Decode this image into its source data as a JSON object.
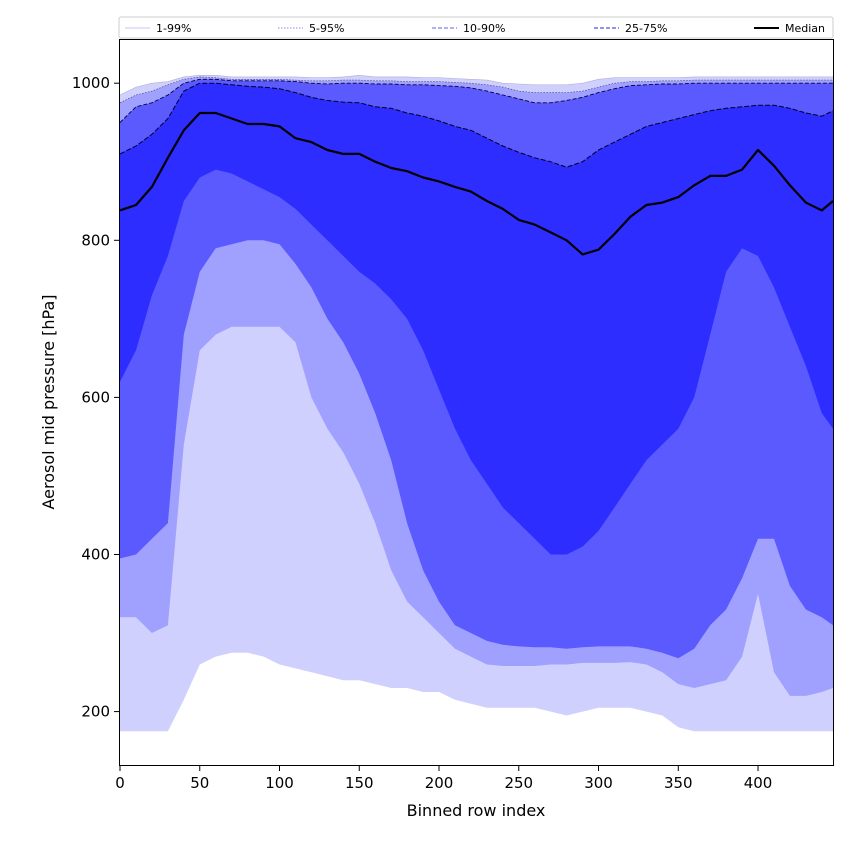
{
  "chart_data": {
    "type": "area",
    "xlabel": "Binned row index",
    "ylabel": "Aerosol mid pressure [hPa]",
    "xlim": [
      0,
      447
    ],
    "ylim": [
      132,
      1055
    ],
    "xticks": [
      0,
      50,
      100,
      150,
      200,
      250,
      300,
      350,
      400
    ],
    "yticks": [
      200,
      400,
      600,
      800,
      1000
    ],
    "grid": false,
    "legend_position": "top",
    "legend": [
      {
        "label": "1-99%",
        "color": "#d0d0ff",
        "style": "solid"
      },
      {
        "label": "5-95%",
        "color": "#a0a0ff",
        "style": "dotted"
      },
      {
        "label": "10-90%",
        "color": "#8080f0",
        "style": "dashed"
      },
      {
        "label": "25-75%",
        "color": "#5050e8",
        "style": "dashed"
      },
      {
        "label": "Median",
        "color": "#000000",
        "style": "solid"
      }
    ],
    "band_colors": {
      "p01_p99": "#d0d0ff",
      "p05_p95": "#a0a0ff",
      "p10_p90": "#5a5aff",
      "p25_p75": "#2d2dff"
    },
    "x": [
      0,
      10,
      20,
      30,
      40,
      50,
      60,
      70,
      80,
      90,
      100,
      110,
      120,
      130,
      140,
      150,
      160,
      170,
      180,
      190,
      200,
      210,
      220,
      230,
      240,
      250,
      260,
      270,
      280,
      290,
      300,
      310,
      320,
      330,
      340,
      350,
      360,
      370,
      380,
      390,
      400,
      410,
      420,
      430,
      440,
      447
    ],
    "series": [
      {
        "name": "1-99%",
        "lower": [
          175,
          175,
          175,
          175,
          215,
          260,
          270,
          275,
          275,
          270,
          260,
          255,
          250,
          245,
          240,
          240,
          235,
          230,
          230,
          225,
          225,
          215,
          210,
          205,
          205,
          205,
          205,
          200,
          195,
          200,
          205,
          205,
          205,
          200,
          195,
          180,
          175,
          175,
          175,
          175,
          175,
          175,
          175,
          175,
          175,
          175
        ],
        "upper": [
          985,
          995,
          1000,
          1002,
          1008,
          1010,
          1010,
          1008,
          1008,
          1008,
          1008,
          1008,
          1007,
          1007,
          1008,
          1010,
          1008,
          1008,
          1008,
          1007,
          1007,
          1006,
          1005,
          1004,
          1000,
          999,
          998,
          998,
          998,
          1000,
          1005,
          1007,
          1007,
          1007,
          1007,
          1007,
          1008,
          1008,
          1008,
          1008,
          1008,
          1008,
          1008,
          1008,
          1008,
          1008
        ]
      },
      {
        "name": "5-95%",
        "lower": [
          320,
          320,
          300,
          310,
          540,
          660,
          680,
          690,
          690,
          690,
          690,
          670,
          600,
          560,
          530,
          490,
          440,
          380,
          340,
          320,
          300,
          280,
          270,
          260,
          258,
          258,
          258,
          260,
          260,
          262,
          262,
          262,
          263,
          260,
          250,
          235,
          230,
          235,
          240,
          270,
          350,
          250,
          220,
          220,
          225,
          230
        ],
        "upper": [
          975,
          985,
          990,
          998,
          1005,
          1008,
          1007,
          1005,
          1005,
          1005,
          1005,
          1004,
          1003,
          1003,
          1004,
          1004,
          1003,
          1003,
          1002,
          1002,
          1002,
          1001,
          1000,
          998,
          995,
          990,
          988,
          988,
          988,
          990,
          995,
          1000,
          1002,
          1002,
          1003,
          1003,
          1004,
          1004,
          1004,
          1004,
          1004,
          1004,
          1004,
          1004,
          1004,
          1004
        ]
      },
      {
        "name": "10-90%",
        "lower": [
          395,
          400,
          420,
          440,
          680,
          760,
          790,
          795,
          800,
          800,
          795,
          770,
          740,
          700,
          670,
          630,
          580,
          520,
          440,
          380,
          340,
          310,
          300,
          290,
          285,
          283,
          282,
          282,
          280,
          282,
          283,
          283,
          283,
          280,
          275,
          268,
          280,
          310,
          330,
          370,
          420,
          420,
          360,
          330,
          320,
          310
        ],
        "upper": [
          950,
          970,
          975,
          985,
          1000,
          1005,
          1005,
          1003,
          1003,
          1003,
          1003,
          1002,
          1000,
          999,
          1000,
          1000,
          999,
          999,
          998,
          998,
          997,
          996,
          994,
          990,
          985,
          980,
          975,
          975,
          978,
          982,
          988,
          993,
          997,
          998,
          999,
          999,
          1000,
          1000,
          1000,
          1000,
          1000,
          1000,
          1000,
          1000,
          1000,
          1000
        ]
      },
      {
        "name": "25-75%",
        "lower": [
          620,
          660,
          730,
          780,
          850,
          880,
          890,
          885,
          875,
          865,
          855,
          840,
          820,
          800,
          780,
          760,
          745,
          725,
          700,
          660,
          610,
          560,
          520,
          490,
          460,
          440,
          420,
          400,
          400,
          410,
          430,
          460,
          490,
          520,
          540,
          560,
          600,
          680,
          760,
          790,
          780,
          740,
          690,
          640,
          580,
          560
        ],
        "upper": [
          910,
          920,
          935,
          955,
          990,
          1000,
          1000,
          998,
          996,
          995,
          993,
          988,
          982,
          978,
          976,
          975,
          970,
          968,
          962,
          958,
          952,
          945,
          940,
          930,
          920,
          912,
          905,
          900,
          893,
          900,
          915,
          925,
          935,
          945,
          950,
          955,
          960,
          965,
          968,
          970,
          972,
          972,
          968,
          962,
          958,
          965
        ]
      },
      {
        "name": "Median",
        "values": [
          838,
          845,
          868,
          905,
          940,
          962,
          962,
          955,
          948,
          948,
          945,
          930,
          925,
          915,
          910,
          910,
          900,
          892,
          888,
          880,
          875,
          868,
          862,
          850,
          840,
          826,
          820,
          810,
          800,
          782,
          788,
          808,
          830,
          845,
          848,
          855,
          870,
          882,
          882,
          890,
          915,
          895,
          870,
          848,
          838,
          850
        ]
      }
    ]
  }
}
